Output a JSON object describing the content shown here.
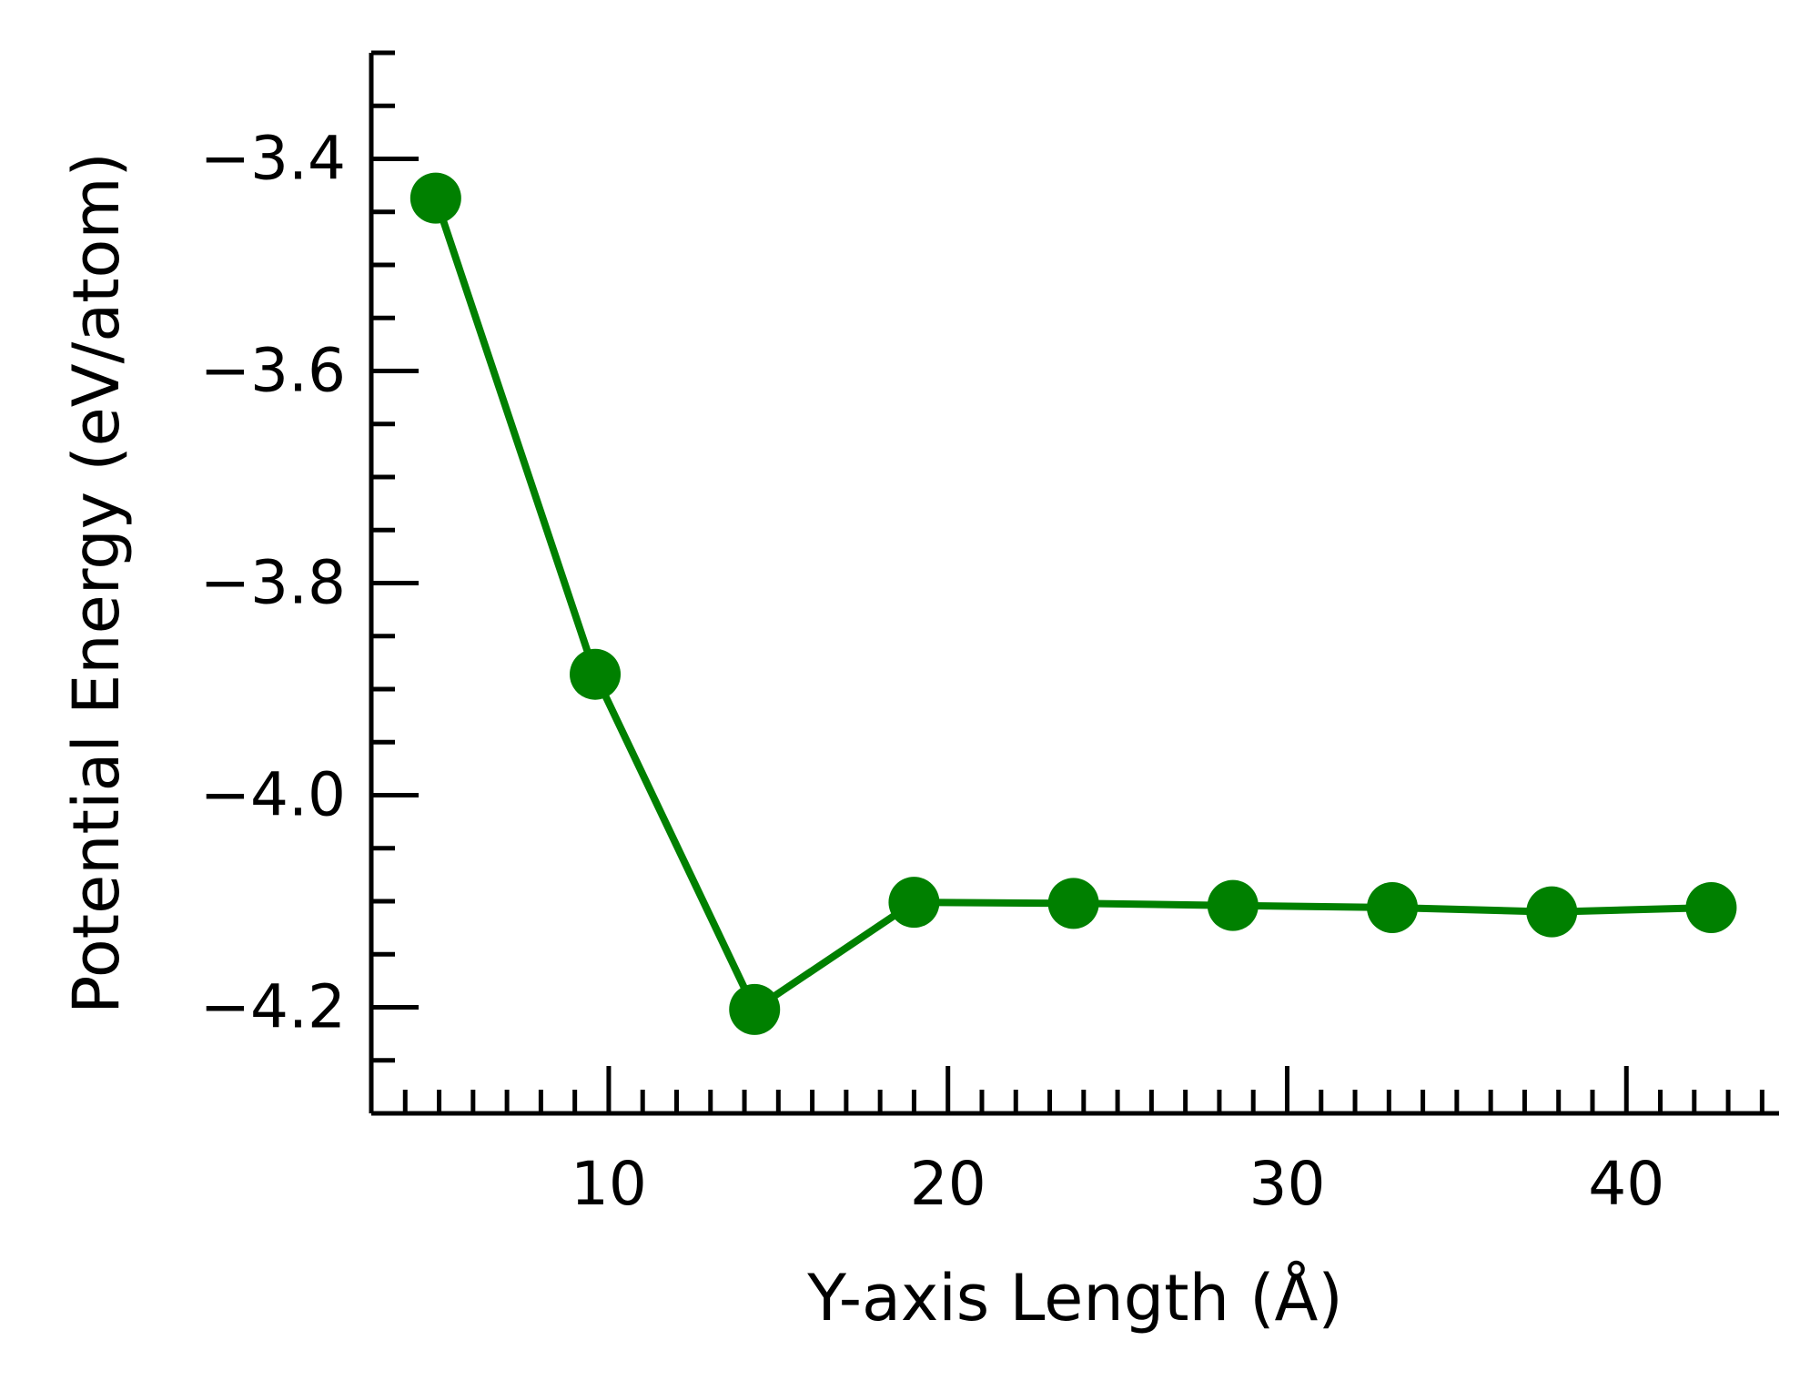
{
  "chart_data": {
    "type": "line",
    "title": "",
    "xlabel": "Y-axis Length (Å)",
    "ylabel": "Potential Energy (eV/atom)",
    "xlim": [
      3.0,
      44.5
    ],
    "ylim": [
      -4.3,
      -3.3
    ],
    "x_ticks": [
      10,
      20,
      30,
      40
    ],
    "x_tick_labels": [
      "10",
      "20",
      "30",
      "40"
    ],
    "y_ticks": [
      -3.4,
      -3.6,
      -3.8,
      -4.0,
      -4.2
    ],
    "y_tick_labels": [
      "−3.4",
      "−3.6",
      "−3.8",
      "−4.0",
      "−4.2"
    ],
    "grid": false,
    "legend": null,
    "series": [
      {
        "color": "#008000",
        "x": [
          4.9,
          9.6,
          14.3,
          19.0,
          23.7,
          28.4,
          33.1,
          37.8,
          42.5
        ],
        "y": [
          -3.437,
          -3.886,
          -4.202,
          -4.101,
          -4.102,
          -4.104,
          -4.106,
          -4.11,
          -4.106
        ]
      }
    ]
  }
}
